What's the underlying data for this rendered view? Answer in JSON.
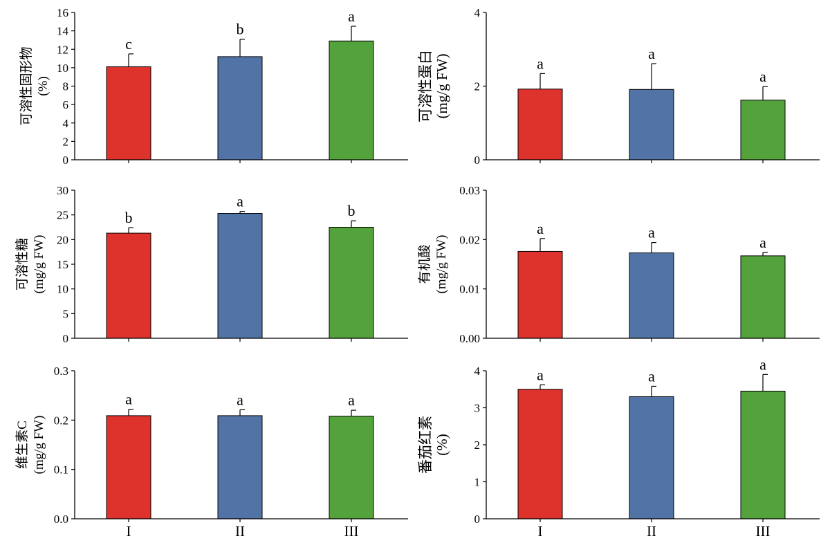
{
  "colors": {
    "series": [
      "#de322c",
      "#5273a6",
      "#53a23c"
    ],
    "axis": "#000000",
    "edge": "#000000"
  },
  "chart_data": [
    {
      "type": "bar",
      "categories": [
        "I",
        "II",
        "III"
      ],
      "values": [
        10.1,
        11.2,
        12.9
      ],
      "errors": [
        1.4,
        1.9,
        1.6
      ],
      "significance": [
        "c",
        "b",
        "a"
      ],
      "ylabel_lines": [
        "可溶性固形物",
        "(%)"
      ],
      "ylim": [
        0,
        16
      ],
      "yticks": [
        "0",
        "2",
        "4",
        "6",
        "8",
        "10",
        "12",
        "14",
        "16"
      ],
      "show_x_labels": false,
      "grid": false
    },
    {
      "type": "bar",
      "categories": [
        "I",
        "II",
        "III"
      ],
      "values": [
        1.92,
        1.91,
        1.62
      ],
      "errors": [
        0.42,
        0.7,
        0.37
      ],
      "significance": [
        "a",
        "a",
        "a"
      ],
      "ylabel_lines": [
        "可溶性蛋白",
        "(mg/g  FW)"
      ],
      "ylim": [
        0,
        4
      ],
      "yticks": [
        "0",
        "2",
        "4"
      ],
      "show_x_labels": false,
      "grid": false
    },
    {
      "type": "bar",
      "categories": [
        "I",
        "II",
        "III"
      ],
      "values": [
        21.3,
        25.3,
        22.5
      ],
      "errors": [
        1.1,
        0.4,
        1.3
      ],
      "significance": [
        "b",
        "a",
        "b"
      ],
      "ylabel_lines": [
        "可溶性糖",
        "(mg/g  FW)"
      ],
      "ylim": [
        0,
        30
      ],
      "yticks": [
        "0",
        "5",
        "10",
        "15",
        "20",
        "25",
        "30"
      ],
      "show_x_labels": false,
      "grid": false
    },
    {
      "type": "bar",
      "categories": [
        "I",
        "II",
        "III"
      ],
      "values": [
        0.0176,
        0.0173,
        0.0167
      ],
      "errors": [
        0.0026,
        0.0021,
        0.0007
      ],
      "significance": [
        "a",
        "a",
        "a"
      ],
      "ylabel_lines": [
        "有机酸",
        "(mg/g  FW)"
      ],
      "ylim": [
        0,
        0.03
      ],
      "yticks": [
        "0.00",
        "0.01",
        "0.02",
        "0.03"
      ],
      "show_x_labels": false,
      "grid": false
    },
    {
      "type": "bar",
      "categories": [
        "I",
        "II",
        "III"
      ],
      "values": [
        0.209,
        0.209,
        0.208
      ],
      "errors": [
        0.013,
        0.012,
        0.012
      ],
      "significance": [
        "a",
        "a",
        "a"
      ],
      "ylabel_lines": [
        "维生素C",
        "(mg/g  FW)"
      ],
      "ylim": [
        0,
        0.3
      ],
      "yticks": [
        "0.0",
        "0.1",
        "0.2",
        "0.3"
      ],
      "show_x_labels": true,
      "grid": false
    },
    {
      "type": "bar",
      "categories": [
        "I",
        "II",
        "III"
      ],
      "values": [
        3.5,
        3.3,
        3.45
      ],
      "errors": [
        0.12,
        0.28,
        0.45
      ],
      "significance": [
        "a",
        "a",
        "a"
      ],
      "ylabel_lines": [
        "番茄红素",
        "(%)"
      ],
      "ylim": [
        0,
        4
      ],
      "yticks": [
        "0",
        "1",
        "2",
        "3",
        "4"
      ],
      "show_x_labels": true,
      "grid": false
    }
  ]
}
